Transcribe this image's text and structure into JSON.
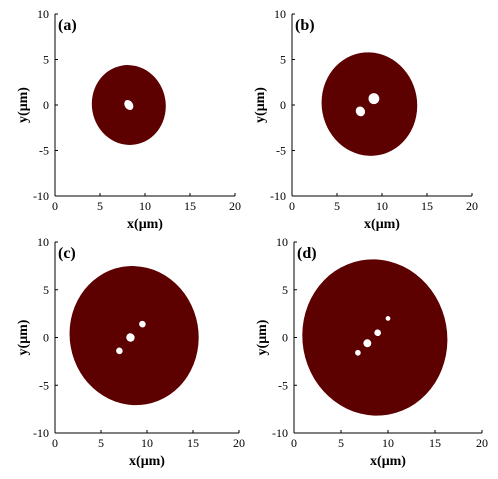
{
  "colors": {
    "disc": "#5c0000",
    "hole": "#ffffff",
    "axis": "#000000"
  },
  "chart_data": [
    {
      "type": "scatter",
      "panel_label": "(a)",
      "xlabel": "x(μm)",
      "ylabel": "y(μm)",
      "xlim": [
        0,
        20
      ],
      "ylim": [
        -10,
        10
      ],
      "xticks": [
        "0",
        "5",
        "10",
        "15",
        "20"
      ],
      "yticks": [
        "10",
        "5",
        "0",
        "-5",
        "-10"
      ],
      "disc": {
        "cx": 8.2,
        "cy": 0.0,
        "rx": 4.1,
        "ry": 4.4,
        "rot": -10
      },
      "holes": [
        {
          "x": 8.2,
          "y": 0.0,
          "rx": 0.45,
          "ry": 0.6
        }
      ]
    },
    {
      "type": "scatter",
      "panel_label": "(b)",
      "xlabel": "x(μm)",
      "ylabel": "y(μm)",
      "xlim": [
        0,
        20
      ],
      "ylim": [
        -10,
        10
      ],
      "xticks": [
        "0",
        "5",
        "10",
        "15",
        "20"
      ],
      "yticks": [
        "10",
        "5",
        "0",
        "-5",
        "-10"
      ],
      "disc": {
        "cx": 8.6,
        "cy": 0.1,
        "rx": 5.3,
        "ry": 5.7,
        "rot": -10
      },
      "holes": [
        {
          "x": 9.1,
          "y": 0.7,
          "rx": 0.6,
          "ry": 0.6
        },
        {
          "x": 7.6,
          "y": -0.7,
          "rx": 0.5,
          "ry": 0.55
        }
      ]
    },
    {
      "type": "scatter",
      "panel_label": "(c)",
      "xlabel": "x(μm)",
      "ylabel": "y(μm)",
      "xlim": [
        0,
        20
      ],
      "ylim": [
        -10,
        10
      ],
      "xticks": [
        "0",
        "5",
        "10",
        "15",
        "20"
      ],
      "yticks": [
        "10",
        "5",
        "0",
        "-5",
        "-10"
      ],
      "disc": {
        "cx": 8.6,
        "cy": 0.2,
        "rx": 7.0,
        "ry": 7.3,
        "rot": -10
      },
      "holes": [
        {
          "x": 9.5,
          "y": 1.4,
          "rx": 0.35,
          "ry": 0.35
        },
        {
          "x": 8.2,
          "y": 0.0,
          "rx": 0.45,
          "ry": 0.45
        },
        {
          "x": 7.0,
          "y": -1.4,
          "rx": 0.35,
          "ry": 0.35
        }
      ]
    },
    {
      "type": "scatter",
      "panel_label": "(d)",
      "xlabel": "x(μm)",
      "ylabel": "y(μm)",
      "xlim": [
        0,
        20
      ],
      "ylim": [
        -10,
        10
      ],
      "xticks": [
        "0",
        "5",
        "10",
        "15",
        "20"
      ],
      "yticks": [
        "10",
        "5",
        "0",
        "-5",
        "-10"
      ],
      "disc": {
        "cx": 8.6,
        "cy": 0.0,
        "rx": 7.7,
        "ry": 8.2,
        "rot": -10
      },
      "holes": [
        {
          "x": 10.0,
          "y": 2.0,
          "rx": 0.25,
          "ry": 0.25
        },
        {
          "x": 8.9,
          "y": 0.5,
          "rx": 0.35,
          "ry": 0.35
        },
        {
          "x": 7.8,
          "y": -0.6,
          "rx": 0.42,
          "ry": 0.42
        },
        {
          "x": 6.8,
          "y": -1.6,
          "rx": 0.3,
          "ry": 0.3
        }
      ]
    }
  ]
}
